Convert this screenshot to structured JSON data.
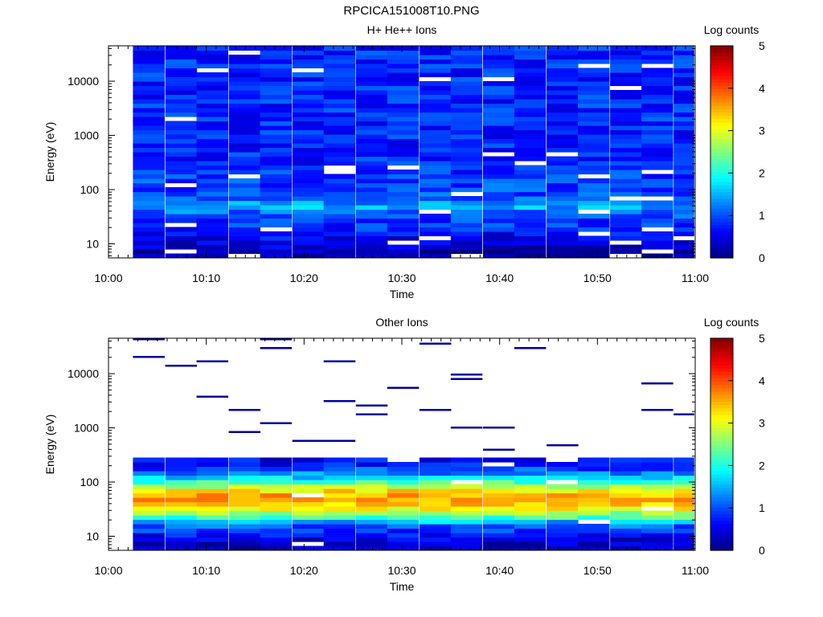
{
  "figure_title": "RPCICA151008T10.PNG",
  "colors": {
    "colormap": [
      "#00007f",
      "#0000ff",
      "#007fff",
      "#00ffff",
      "#7fff7f",
      "#ffff00",
      "#ff7f00",
      "#ff0000",
      "#7f0000"
    ]
  },
  "chart_data": [
    {
      "type": "heatmap",
      "title": "H+ He++ Ions",
      "xlabel": "Time",
      "ylabel": "Energy (eV)",
      "colorbar_label": "Log counts",
      "x_ticks": [
        "10:00",
        "10:10",
        "10:20",
        "10:30",
        "10:40",
        "10:50",
        "11:00"
      ],
      "x_range_minutes": [
        0,
        60
      ],
      "y_scale": "log",
      "y_range": [
        5.5,
        45000
      ],
      "y_ticks": [
        "10",
        "100",
        "1000",
        "10000"
      ],
      "colorbar_range": [
        0,
        5
      ],
      "colorbar_ticks": [
        "0",
        "1",
        "2",
        "3",
        "4",
        "5"
      ],
      "time_bins_start_minute": [
        2.5,
        5.8,
        9.0,
        12.3,
        15.5,
        18.8,
        22.0,
        25.3,
        28.5,
        31.8,
        35.0,
        38.3,
        41.5,
        44.8,
        48.0,
        51.3,
        54.5,
        57.8
      ],
      "time_bin_width_minutes": 3.25,
      "energy_profile_log_counts": [
        {
          "energy": 7,
          "log_counts": 0.2
        },
        {
          "energy": 9,
          "log_counts": 0.4
        },
        {
          "energy": 13,
          "log_counts": 0.6
        },
        {
          "energy": 20,
          "log_counts": 0.8
        },
        {
          "energy": 35,
          "log_counts": 1.0
        },
        {
          "energy": 50,
          "log_counts": 1.5
        },
        {
          "energy": 80,
          "log_counts": 1.0
        },
        {
          "energy": 300,
          "log_counts": 0.8
        },
        {
          "energy": 3000,
          "log_counts": 0.8
        },
        {
          "energy": 30000,
          "log_counts": 0.8
        }
      ]
    },
    {
      "type": "heatmap",
      "title": "Other Ions",
      "xlabel": "Time",
      "ylabel": "Energy (eV)",
      "colorbar_label": "Log counts",
      "x_ticks": [
        "10:00",
        "10:10",
        "10:20",
        "10:30",
        "10:40",
        "10:50",
        "11:00"
      ],
      "x_range_minutes": [
        0,
        60
      ],
      "y_scale": "log",
      "y_range": [
        5.5,
        45000
      ],
      "y_ticks": [
        "10",
        "100",
        "1000",
        "10000"
      ],
      "colorbar_range": [
        0,
        5
      ],
      "colorbar_ticks": [
        "0",
        "1",
        "2",
        "3",
        "4",
        "5"
      ],
      "time_bins_start_minute": [
        2.5,
        5.8,
        9.0,
        12.3,
        15.5,
        18.8,
        22.0,
        25.3,
        28.5,
        31.8,
        35.0,
        38.3,
        41.5,
        44.8,
        48.0,
        51.3,
        54.5,
        57.8
      ],
      "time_bin_width_minutes": 3.25,
      "energy_profile_log_counts": [
        {
          "energy": 7,
          "log_counts": 0.3
        },
        {
          "energy": 10,
          "log_counts": 0.6
        },
        {
          "energy": 17,
          "log_counts": 1.2
        },
        {
          "energy": 23,
          "log_counts": 2.3
        },
        {
          "energy": 35,
          "log_counts": 3.2
        },
        {
          "energy": 50,
          "log_counts": 3.7
        },
        {
          "energy": 70,
          "log_counts": 3.2
        },
        {
          "energy": 100,
          "log_counts": 2.2
        },
        {
          "energy": 150,
          "log_counts": 1.2
        },
        {
          "energy": 230,
          "log_counts": 0.6
        }
      ]
    }
  ]
}
